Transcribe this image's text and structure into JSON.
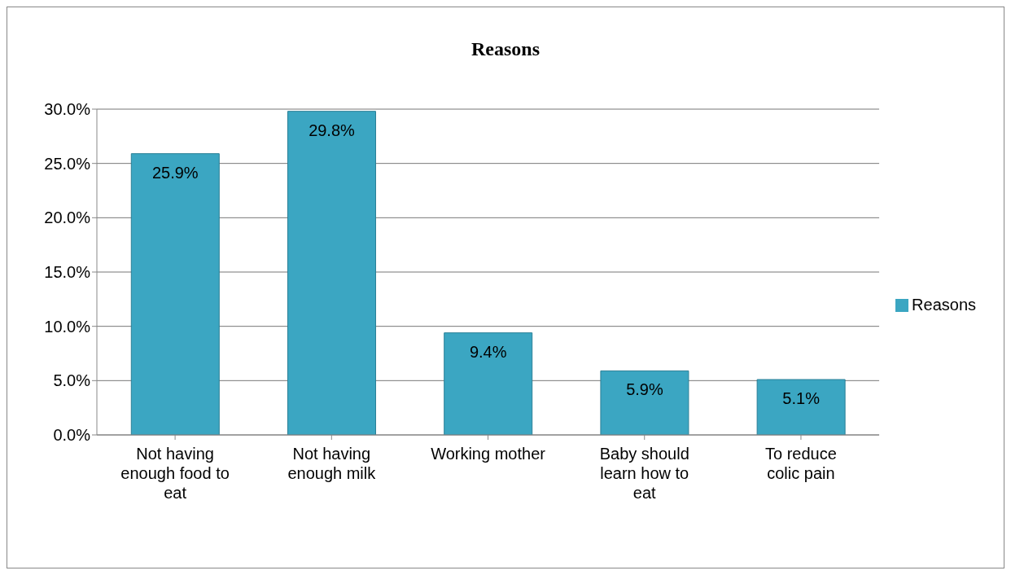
{
  "chart_data": {
    "type": "bar",
    "title": "Reasons",
    "categories": [
      "Not having enough food to eat",
      "Not having enough milk",
      "Working mother",
      "Baby should learn how to eat",
      "To reduce colic pain"
    ],
    "series": [
      {
        "name": "Reasons",
        "color": "#3ba6c2",
        "values": [
          25.9,
          29.8,
          9.4,
          5.9,
          5.1
        ]
      }
    ],
    "value_labels": [
      "25.9%",
      "29.8%",
      "9.4%",
      "5.9%",
      "5.1%"
    ],
    "ylim": [
      0,
      30
    ],
    "yticks": [
      {
        "value": 0,
        "label": "0.0%"
      },
      {
        "value": 5,
        "label": "5.0%"
      },
      {
        "value": 10,
        "label": "10.0%"
      },
      {
        "value": 15,
        "label": "15.0%"
      },
      {
        "value": 20,
        "label": "20.0%"
      },
      {
        "value": 25,
        "label": "25.0%"
      },
      {
        "value": 30,
        "label": "30.0%"
      }
    ],
    "grid": "y",
    "legend": "right"
  }
}
